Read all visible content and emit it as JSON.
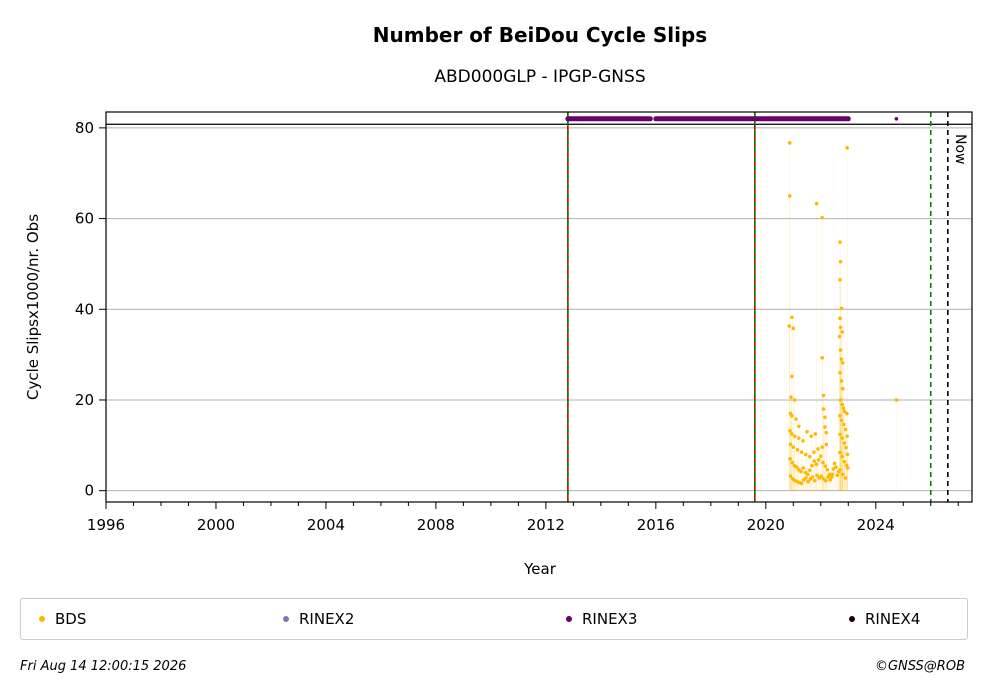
{
  "chart_data": {
    "type": "scatter",
    "title": "Number of BeiDou Cycle Slips",
    "subtitle": "ABD000GLP - IPGP-GNSS",
    "xlabel": "Year",
    "ylabel": "Cycle Slipsx1000/nr. Obs",
    "xlim": [
      1996,
      2027.5
    ],
    "ylim": [
      -2.5,
      83.5
    ],
    "xticks": [
      1996,
      2000,
      2004,
      2008,
      2012,
      2016,
      2020,
      2024
    ],
    "yticks": [
      0,
      20,
      40,
      60,
      80
    ],
    "grid": "horizontal",
    "hline": 80.8,
    "vlines": [
      {
        "x": 2012.8,
        "color": "#cc0000",
        "style": "solid"
      },
      {
        "x": 2012.8,
        "color": "#008000",
        "style": "dashed"
      },
      {
        "x": 2019.6,
        "color": "#cc0000",
        "style": "solid"
      },
      {
        "x": 2019.6,
        "color": "#008000",
        "style": "dashed"
      },
      {
        "x": 2026.0,
        "color": "#008000",
        "style": "dashed"
      },
      {
        "x": 2026.62,
        "color": "#000000",
        "style": "dashed",
        "label": "Now"
      }
    ],
    "series": [
      {
        "name": "BDS",
        "color": "#ffb800",
        "points": [
          [
            2020.87,
            76.7
          ],
          [
            2020.87,
            65.0
          ],
          [
            2020.85,
            36.3
          ],
          [
            2021.0,
            35.8
          ],
          [
            2020.95,
            38.2
          ],
          [
            2020.95,
            25.2
          ],
          [
            2020.92,
            20.6
          ],
          [
            2021.05,
            20.0
          ],
          [
            2020.9,
            17.0
          ],
          [
            2020.95,
            16.5
          ],
          [
            2021.1,
            15.8
          ],
          [
            2021.2,
            14.2
          ],
          [
            2020.88,
            13.2
          ],
          [
            2020.95,
            12.5
          ],
          [
            2021.05,
            12.0
          ],
          [
            2021.2,
            11.6
          ],
          [
            2021.35,
            11.0
          ],
          [
            2021.5,
            13.0
          ],
          [
            2021.65,
            12.0
          ],
          [
            2021.8,
            12.5
          ],
          [
            2020.9,
            10.2
          ],
          [
            2021.0,
            9.6
          ],
          [
            2021.15,
            9.0
          ],
          [
            2021.3,
            8.5
          ],
          [
            2021.45,
            8.0
          ],
          [
            2021.6,
            7.5
          ],
          [
            2021.75,
            8.5
          ],
          [
            2021.9,
            9.2
          ],
          [
            2022.05,
            9.6
          ],
          [
            2022.2,
            10.2
          ],
          [
            2020.88,
            7.0
          ],
          [
            2020.96,
            6.2
          ],
          [
            2021.04,
            5.5
          ],
          [
            2021.12,
            5.2
          ],
          [
            2021.2,
            4.6
          ],
          [
            2021.28,
            4.2
          ],
          [
            2021.36,
            5.0
          ],
          [
            2021.44,
            4.0
          ],
          [
            2021.52,
            3.6
          ],
          [
            2021.6,
            4.5
          ],
          [
            2021.68,
            5.5
          ],
          [
            2021.76,
            6.5
          ],
          [
            2021.84,
            5.8
          ],
          [
            2021.92,
            6.8
          ],
          [
            2022.0,
            7.6
          ],
          [
            2022.08,
            6.2
          ],
          [
            2022.16,
            5.4
          ],
          [
            2022.24,
            4.6
          ],
          [
            2022.32,
            3.6
          ],
          [
            2022.4,
            3.0
          ],
          [
            2020.9,
            3.2
          ],
          [
            2020.98,
            2.6
          ],
          [
            2021.06,
            2.2
          ],
          [
            2021.14,
            2.0
          ],
          [
            2021.22,
            1.8
          ],
          [
            2021.3,
            1.6
          ],
          [
            2021.38,
            2.4
          ],
          [
            2021.46,
            2.8
          ],
          [
            2021.54,
            2.0
          ],
          [
            2021.62,
            2.6
          ],
          [
            2021.7,
            3.0
          ],
          [
            2021.78,
            2.2
          ],
          [
            2021.86,
            3.4
          ],
          [
            2021.94,
            2.8
          ],
          [
            2022.02,
            3.2
          ],
          [
            2022.1,
            2.6
          ],
          [
            2022.18,
            2.2
          ],
          [
            2022.26,
            3.0
          ],
          [
            2022.34,
            2.4
          ],
          [
            2022.42,
            3.6
          ],
          [
            2021.85,
            63.3
          ],
          [
            2022.05,
            60.2
          ],
          [
            2022.05,
            29.3
          ],
          [
            2022.1,
            21.0
          ],
          [
            2022.1,
            18.0
          ],
          [
            2022.15,
            16.2
          ],
          [
            2022.15,
            14.0
          ],
          [
            2022.2,
            12.8
          ],
          [
            2022.45,
            4.8
          ],
          [
            2022.5,
            6.0
          ],
          [
            2022.55,
            5.2
          ],
          [
            2022.6,
            3.4
          ],
          [
            2022.65,
            4.2
          ],
          [
            2022.7,
            54.8
          ],
          [
            2022.72,
            50.5
          ],
          [
            2022.7,
            46.5
          ],
          [
            2022.75,
            40.2
          ],
          [
            2022.7,
            38.0
          ],
          [
            2022.72,
            36.0
          ],
          [
            2022.78,
            35.0
          ],
          [
            2022.68,
            34.0
          ],
          [
            2022.72,
            31.0
          ],
          [
            2022.75,
            29.0
          ],
          [
            2022.8,
            28.2
          ],
          [
            2022.7,
            26.0
          ],
          [
            2022.75,
            24.2
          ],
          [
            2022.8,
            22.5
          ],
          [
            2022.72,
            20.0
          ],
          [
            2022.78,
            19.0
          ],
          [
            2022.82,
            18.2
          ],
          [
            2022.86,
            17.5
          ],
          [
            2022.7,
            16.5
          ],
          [
            2022.76,
            15.5
          ],
          [
            2022.84,
            14.6
          ],
          [
            2022.9,
            13.5
          ],
          [
            2022.7,
            12.4
          ],
          [
            2022.78,
            11.6
          ],
          [
            2022.86,
            10.5
          ],
          [
            2022.92,
            9.5
          ],
          [
            2022.7,
            8.4
          ],
          [
            2022.78,
            7.5
          ],
          [
            2022.86,
            6.4
          ],
          [
            2022.94,
            5.6
          ],
          [
            2022.7,
            4.6
          ],
          [
            2022.8,
            3.6
          ],
          [
            2022.9,
            2.8
          ],
          [
            2022.96,
            75.6
          ],
          [
            2022.95,
            17.0
          ],
          [
            2022.96,
            12.0
          ],
          [
            2022.97,
            8.0
          ],
          [
            2022.98,
            5.0
          ],
          [
            2024.75,
            20.0
          ]
        ]
      },
      {
        "name": "RINEX2",
        "color": "#7b77b8",
        "points": []
      },
      {
        "name": "RINEX3",
        "color": "#6b006b",
        "segments": [
          [
            2012.8,
            2015.8
          ],
          [
            2016.0,
            2019.55
          ],
          [
            2019.65,
            2023.0
          ]
        ],
        "y": 82.0,
        "points": [
          [
            2024.75,
            82.0
          ]
        ]
      },
      {
        "name": "RINEX4",
        "color": "#1a0010",
        "points": []
      }
    ],
    "legend": "bottom"
  },
  "footer": {
    "timestamp": "Fri Aug 14 12:00:15 2026",
    "credit": "©GNSS@ROB"
  }
}
